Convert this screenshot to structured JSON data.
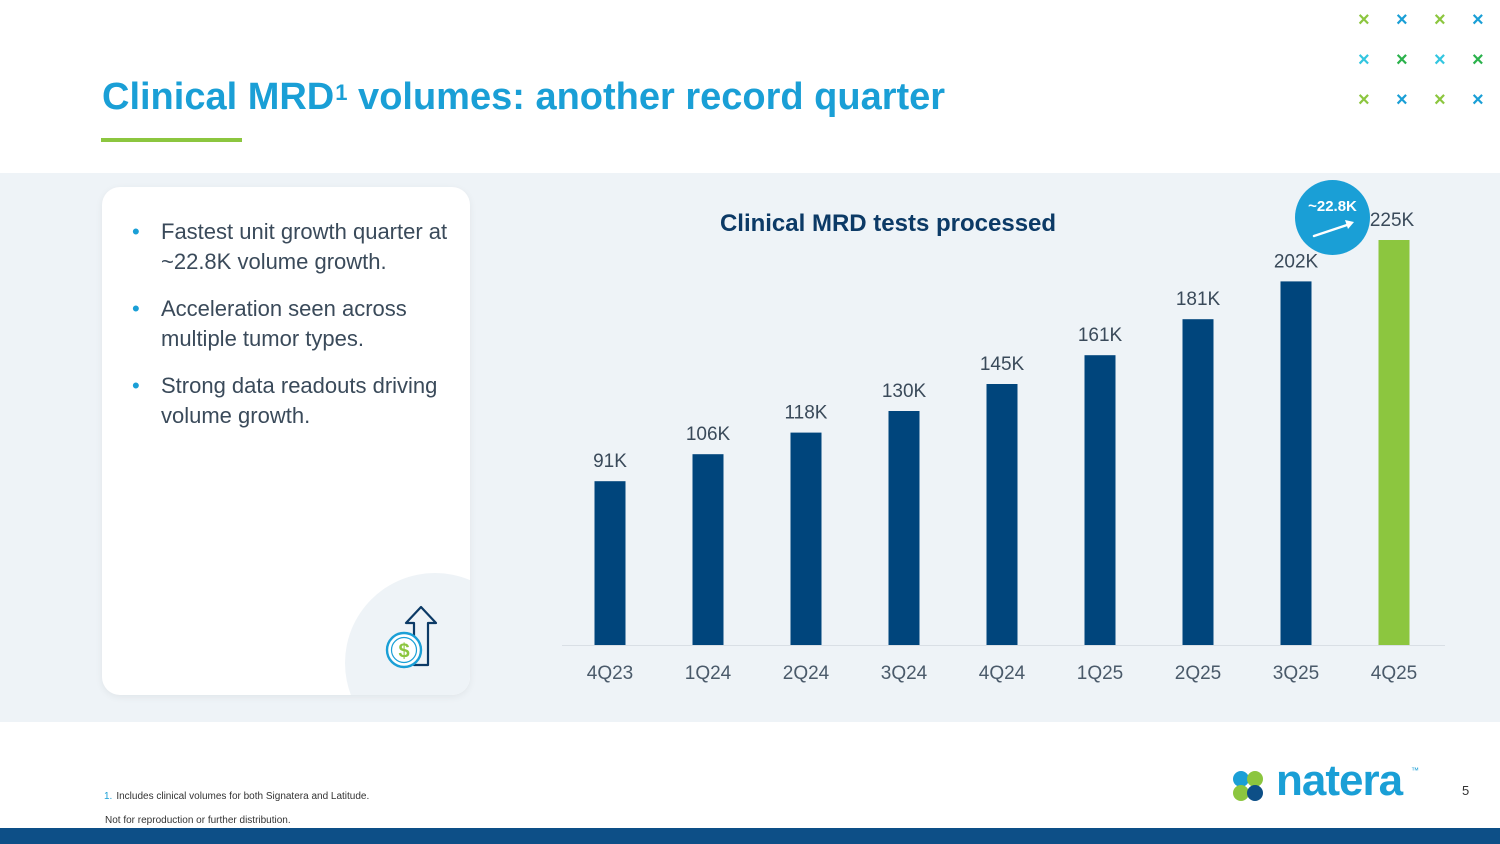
{
  "title": {
    "main": "Clinical MRD",
    "sup": "1",
    "rest": " volumes: another record quarter"
  },
  "bullets": [
    "Fastest unit growth quarter at ~22.8K volume growth.",
    "Acceleration seen across multiple tumor types.",
    "Strong data readouts driving volume growth."
  ],
  "badge": {
    "label": "~22.8K"
  },
  "footnote": {
    "number": "1.",
    "text": "Includes clinical volumes for both Signatera and Latitude."
  },
  "disclaimer": "Not for reproduction or further distribution.",
  "logo": {
    "name": "natera",
    "tm": "™"
  },
  "page_number": "5",
  "colors": {
    "brand_blue": "#1a9fd6",
    "navy": "#0c3a66",
    "bar_navy": "#00457c",
    "bar_green": "#8cc63f",
    "logo_green": "#8cc63f",
    "bottom_bar": "#0d4f87"
  },
  "icons": [
    "dollar-growth-icon",
    "trend-arrow-icon",
    "natera-logo-icon",
    "x-pattern-icon"
  ],
  "chart_data": {
    "type": "bar",
    "title": "Clinical MRD tests processed",
    "categories": [
      "4Q23",
      "1Q24",
      "2Q24",
      "3Q24",
      "4Q24",
      "1Q25",
      "2Q25",
      "3Q25",
      "4Q25"
    ],
    "values": [
      91,
      106,
      118,
      130,
      145,
      161,
      181,
      202,
      225
    ],
    "data_labels": [
      "91K",
      "106K",
      "118K",
      "130K",
      "145K",
      "161K",
      "181K",
      "202K",
      "225K"
    ],
    "highlight_index": 8,
    "units": "K tests",
    "xlabel": "",
    "ylabel": "",
    "ylim": [
      0,
      225
    ],
    "grid": false
  }
}
